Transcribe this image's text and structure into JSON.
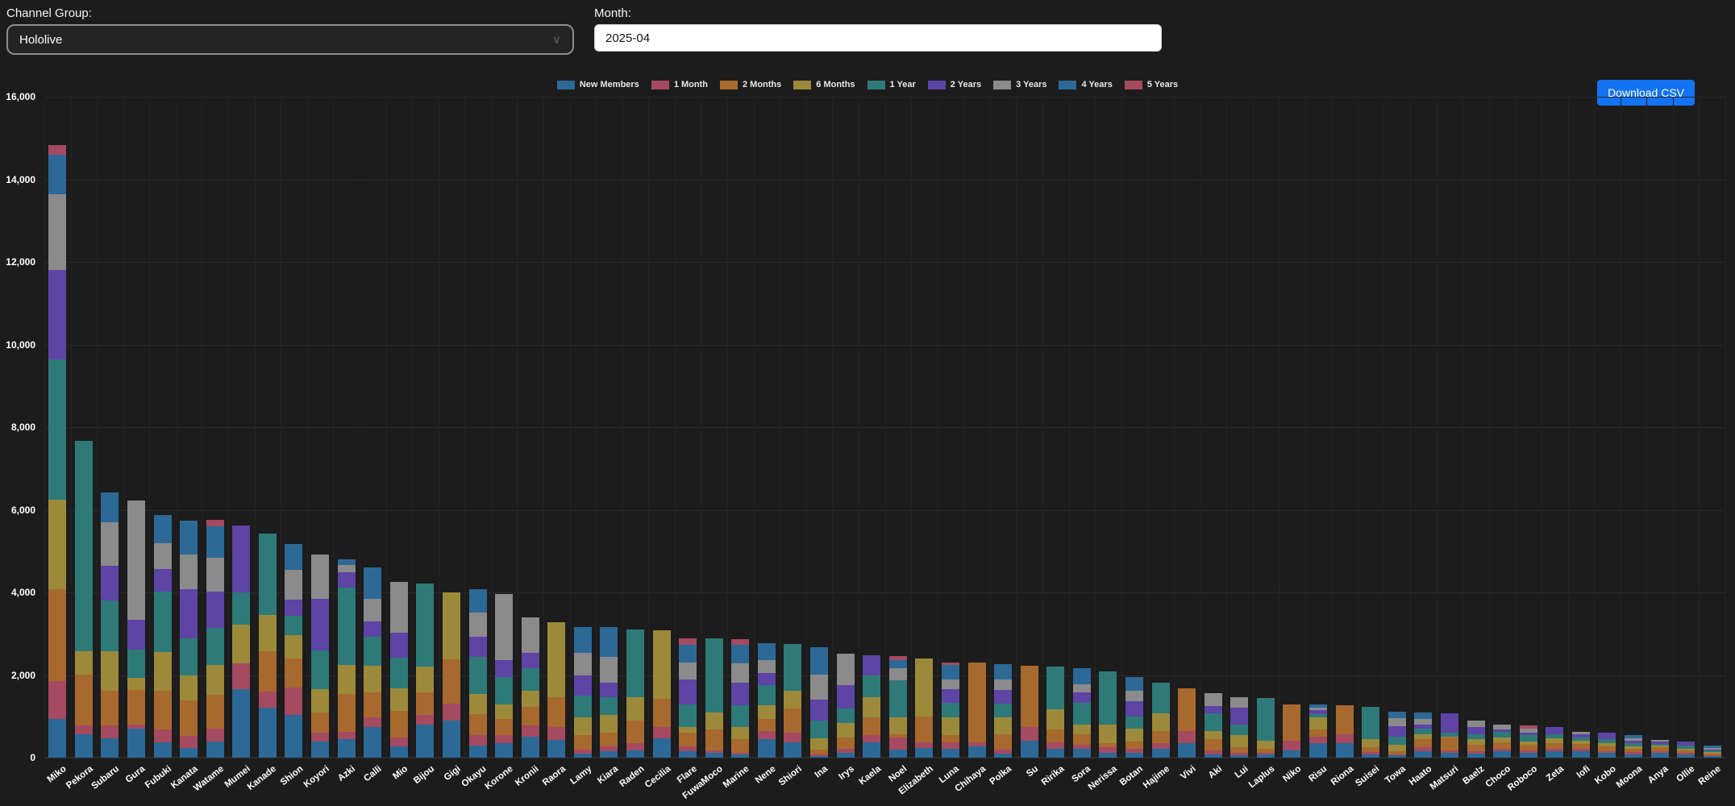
{
  "controls": {
    "channel_group_label": "Channel Group:",
    "channel_group_value": "Hololive",
    "month_label": "Month:",
    "month_value": "2025-04",
    "download_button": "Download CSV"
  },
  "colors": {
    "background": "#1c1c1c",
    "button_blue": "#1473f2",
    "input_bg": "#ffffff",
    "select_border": "#8c8c8c",
    "grid_line": "#2a2a2a",
    "text": "#ffffff"
  },
  "chart_data": {
    "type": "bar",
    "stacked": true,
    "grid": true,
    "legend_position": "top-center",
    "ylim": [
      0,
      16000
    ],
    "y_tick_values": [
      0,
      2000,
      4000,
      6000,
      8000,
      10000,
      12000,
      14000,
      16000
    ],
    "y_tick_labels": [
      "0",
      "2,000",
      "4,000",
      "6,000",
      "8,000",
      "10,000",
      "12,000",
      "14,000",
      "16,000"
    ],
    "categories": [
      "Miko",
      "Pekora",
      "Subaru",
      "Gura",
      "Fubuki",
      "Kanata",
      "Watame",
      "Mumei",
      "Kanade",
      "Shion",
      "Koyori",
      "Azki",
      "Calli",
      "Mio",
      "Bijou",
      "Gigi",
      "Okayu",
      "Korone",
      "Kronii",
      "Raora",
      "Lamy",
      "Kiara",
      "Raden",
      "Cecilia",
      "Flare",
      "FuwaMoco",
      "Marine",
      "Nene",
      "Shiori",
      "Ina",
      "Irys",
      "Kaela",
      "Noel",
      "Elizabeth",
      "Luna",
      "Chihaya",
      "Polka",
      "Su",
      "Ririka",
      "Sora",
      "Nerissa",
      "Botan",
      "Hajime",
      "Vivi",
      "Aki",
      "Lui",
      "Laplus",
      "Niko",
      "Risu",
      "Riona",
      "Suisei",
      "Towa",
      "Haato",
      "Matsuri",
      "Baelz",
      "Choco",
      "Roboco",
      "Zeta",
      "Iofi",
      "Kobo",
      "Moona",
      "Anya",
      "Ollie",
      "Reine"
    ],
    "series": [
      {
        "name": "New Members",
        "color": "#2d6996",
        "values": [
          940,
          575,
          470,
          700,
          365,
          240,
          385,
          1650,
          1205,
          1040,
          395,
          445,
          740,
          280,
          810,
          905,
          300,
          345,
          510,
          430,
          90,
          150,
          185,
          475,
          150,
          120,
          70,
          445,
          380,
          35,
          120,
          380,
          200,
          230,
          215,
          280,
          100,
          410,
          215,
          215,
          120,
          120,
          215,
          345,
          85,
          50,
          85,
          185,
          345,
          345,
          85,
          65,
          150,
          120,
          100,
          150,
          120,
          150,
          150,
          115,
          85,
          115,
          70,
          30
        ]
      },
      {
        "name": "1 Month",
        "color": "#a54a60",
        "values": [
          920,
          210,
          315,
          105,
          315,
          280,
          315,
          630,
          395,
          660,
          210,
          180,
          230,
          200,
          230,
          395,
          250,
          195,
          280,
          305,
          100,
          130,
          165,
          260,
          130,
          65,
          45,
          195,
          230,
          40,
          100,
          165,
          295,
          150,
          165,
          100,
          100,
          325,
          165,
          100,
          130,
          100,
          130,
          295,
          100,
          65,
          35,
          230,
          165,
          230,
          45,
          20,
          100,
          65,
          65,
          65,
          65,
          65,
          65,
          45,
          50,
          50,
          45,
          20
        ]
      },
      {
        "name": "2 Months",
        "color": "#a8692f",
        "values": [
          2215,
          1235,
          835,
          835,
          940,
          870,
          815,
          0,
          980,
          695,
          495,
          915,
          615,
          660,
          550,
          1090,
          500,
          390,
          440,
          720,
          360,
          330,
          555,
          685,
          330,
          490,
          330,
          295,
          590,
          130,
          260,
          425,
          65,
          620,
          165,
          1915,
          360,
          1490,
          295,
          260,
          100,
          165,
          295,
          1045,
          260,
          130,
          100,
          880,
          165,
          700,
          120,
          65,
          195,
          295,
          150,
          165,
          130,
          130,
          115,
          105,
          80,
          80,
          65,
          45
        ]
      },
      {
        "name": "6 Months",
        "color": "#9c8a3a",
        "values": [
          2175,
          565,
          960,
          295,
          940,
          595,
          730,
          940,
          875,
          575,
          565,
          695,
          640,
          530,
          610,
          1620,
          500,
          360,
          390,
          1815,
          425,
          425,
          555,
          1665,
          130,
          425,
          295,
          325,
          425,
          260,
          360,
          490,
          425,
          1405,
          425,
          0,
          425,
          0,
          490,
          230,
          460,
          325,
          425,
          0,
          195,
          305,
          195,
          0,
          295,
          0,
          195,
          165,
          130,
          35,
          130,
          100,
          85,
          130,
          80,
          80,
          50,
          45,
          45,
          35
        ]
      },
      {
        "name": "1 Year",
        "color": "#2e7a78",
        "values": [
          3390,
          5075,
          1235,
          680,
          1465,
          910,
          890,
          785,
          1965,
          470,
          925,
          1885,
          695,
          760,
          2020,
          0,
          880,
          655,
          555,
          0,
          525,
          425,
          1645,
          0,
          555,
          1795,
          525,
          490,
          1130,
          425,
          360,
          525,
          880,
          0,
          360,
          0,
          325,
          0,
          1045,
          525,
          1275,
          295,
          750,
          0,
          425,
          250,
          1030,
          0,
          90,
          0,
          785,
          195,
          130,
          100,
          130,
          145,
          145,
          100,
          80,
          95,
          80,
          50,
          65,
          40
        ]
      },
      {
        "name": "2 Years",
        "color": "#5d44a5",
        "values": [
          2175,
          0,
          835,
          730,
          545,
          1180,
          890,
          1620,
          0,
          380,
          1260,
          365,
          385,
          595,
          0,
          0,
          490,
          425,
          360,
          0,
          490,
          360,
          0,
          0,
          590,
          0,
          555,
          295,
          0,
          525,
          555,
          490,
          0,
          0,
          325,
          0,
          325,
          0,
          0,
          260,
          0,
          360,
          0,
          0,
          185,
          405,
          0,
          0,
          100,
          0,
          0,
          260,
          100,
          455,
          165,
          50,
          65,
          175,
          80,
          175,
          65,
          45,
          105,
          30
        ]
      },
      {
        "name": "3 Years",
        "color": "#8b8b8b",
        "values": [
          1820,
          0,
          1045,
          2875,
          630,
          835,
          815,
          0,
          0,
          730,
          1070,
          180,
          545,
          1225,
          0,
          0,
          600,
          1600,
          870,
          0,
          555,
          620,
          0,
          0,
          425,
          0,
          460,
          325,
          0,
          590,
          765,
          0,
          295,
          0,
          230,
          0,
          260,
          0,
          0,
          195,
          0,
          260,
          0,
          0,
          305,
          260,
          0,
          0,
          60,
          0,
          0,
          195,
          130,
          0,
          155,
          130,
          100,
          0,
          50,
          0,
          65,
          50,
          0,
          35
        ]
      },
      {
        "name": "4 Years",
        "color": "#2d6996",
        "values": [
          960,
          0,
          735,
          0,
          680,
          835,
          755,
          0,
          0,
          630,
          0,
          130,
          760,
          0,
          0,
          0,
          550,
          0,
          0,
          0,
          620,
          720,
          0,
          0,
          425,
          0,
          460,
          405,
          0,
          665,
          0,
          0,
          195,
          0,
          360,
          0,
          360,
          0,
          0,
          380,
          0,
          325,
          0,
          0,
          0,
          0,
          0,
          0,
          70,
          0,
          0,
          150,
          165,
          0,
          0,
          0,
          0,
          0,
          0,
          0,
          80,
          0,
          0,
          50
        ]
      },
      {
        "name": "5 Years",
        "color": "#a54a60",
        "values": [
          240,
          0,
          0,
          0,
          0,
          0,
          160,
          0,
          0,
          0,
          0,
          0,
          0,
          0,
          0,
          0,
          0,
          0,
          0,
          0,
          0,
          0,
          0,
          0,
          160,
          0,
          130,
          0,
          0,
          0,
          0,
          0,
          110,
          0,
          65,
          0,
          0,
          0,
          0,
          0,
          0,
          0,
          0,
          0,
          0,
          0,
          0,
          0,
          0,
          0,
          0,
          0,
          0,
          0,
          0,
          0,
          65,
          0,
          0,
          0,
          0,
          0,
          0,
          0
        ]
      }
    ]
  }
}
